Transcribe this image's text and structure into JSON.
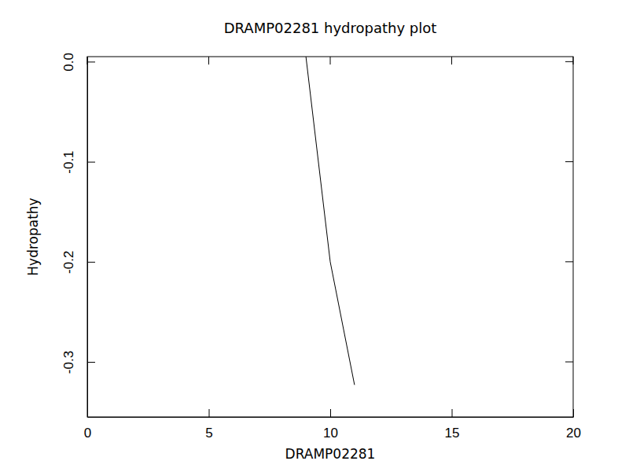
{
  "chart_data": {
    "type": "line",
    "title": "DRAMP02281 hydropathy plot",
    "x_label": "DRAMP02281",
    "y_label": "Hydropathy",
    "x": [
      9,
      10,
      11
    ],
    "values": [
      0.005,
      -0.2,
      -0.323
    ],
    "color": "#000000",
    "xlim": [
      0,
      20
    ],
    "xticks": [
      0,
      5,
      10,
      15,
      20
    ],
    "ylim": [
      -0.355,
      0.005
    ],
    "yticks": [
      {
        "value": 0,
        "label": "0.0"
      },
      -0.1,
      -0.2,
      -0.3
    ],
    "grid": false
  }
}
